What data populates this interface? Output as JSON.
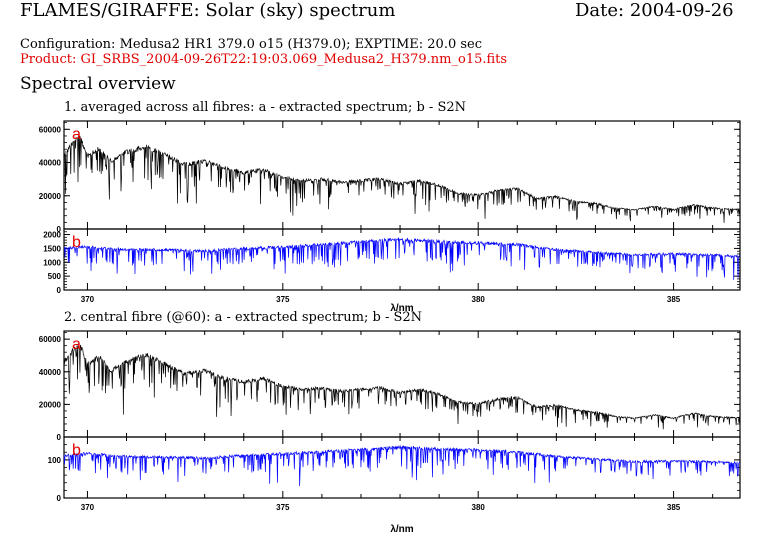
{
  "header": {
    "title": "FLAMES/GIRAFFE: Solar (sky) spectrum",
    "date": "Date: 2004-09-26",
    "configuration": "Configuration: Medusa2 HR1 379.0 o15 (H379.0); EXPTIME: 20.0 sec",
    "product": "Product: GI_SRBS_2004-09-26T22:19:03.069_Medusa2_H379.nm_o15.fits",
    "section": "Spectral overview"
  },
  "colors": {
    "product_text": "#e00000",
    "panel_label": "#e00000",
    "spectrum": "#000000",
    "s2n": "#0000ff"
  },
  "chart_data": [
    {
      "type": "line",
      "title": "1. averaged across all fibres: a - extracted spectrum; b - S2N",
      "xlabel": "λ/nm",
      "xlim": [
        369.4,
        386.7
      ],
      "xticks": [
        370,
        375,
        380,
        385
      ],
      "panels": [
        {
          "label": "a",
          "ylim": [
            0,
            65000
          ],
          "yticks": [
            0,
            20000,
            40000,
            60000
          ],
          "series": [
            {
              "color": "#000000",
              "x": [
                369.4,
                369.6,
                369.8,
                370.0,
                370.3,
                370.6,
                371.0,
                371.5,
                372.0,
                372.5,
                373.0,
                373.5,
                374.0,
                374.5,
                375.0,
                375.5,
                376.0,
                376.5,
                377.0,
                377.5,
                378.0,
                378.5,
                379.0,
                379.5,
                380.0,
                380.5,
                381.0,
                381.5,
                382.0,
                382.5,
                383.0,
                383.5,
                384.0,
                384.5,
                385.0,
                385.5,
                386.0,
                386.7
              ],
              "y": [
                46000,
                53000,
                58000,
                45000,
                50000,
                42000,
                48000,
                51000,
                46000,
                40000,
                42000,
                38000,
                35000,
                37000,
                32000,
                30000,
                31000,
                29000,
                30000,
                31000,
                28000,
                30000,
                27000,
                22000,
                21000,
                24000,
                25000,
                19000,
                20000,
                17000,
                16000,
                13000,
                12000,
                14000,
                12000,
                15000,
                13000,
                12000
              ]
            }
          ]
        },
        {
          "label": "b",
          "ylim": [
            0,
            2200
          ],
          "yticks": [
            0,
            500,
            1000,
            1500,
            2000
          ],
          "series": [
            {
              "color": "#0000ff",
              "x": [
                369.4,
                370.0,
                371.0,
                372.0,
                373.0,
                374.0,
                375.0,
                376.0,
                377.0,
                378.0,
                379.0,
                380.0,
                381.0,
                382.0,
                383.0,
                384.0,
                385.0,
                386.0,
                386.7
              ],
              "y": [
                1550,
                1600,
                1500,
                1500,
                1450,
                1550,
                1600,
                1700,
                1800,
                1900,
                1800,
                1750,
                1700,
                1500,
                1400,
                1300,
                1350,
                1300,
                1250
              ]
            }
          ]
        }
      ]
    },
    {
      "type": "line",
      "title": "2. central fibre (@60): a - extracted spectrum; b - S2N",
      "xlabel": "λ/nm",
      "xlim": [
        369.4,
        386.7
      ],
      "xticks": [
        370,
        375,
        380,
        385
      ],
      "panels": [
        {
          "label": "a",
          "ylim": [
            0,
            65000
          ],
          "yticks": [
            0,
            20000,
            40000,
            60000
          ],
          "series": [
            {
              "color": "#000000",
              "x": [
                369.4,
                369.6,
                369.8,
                370.0,
                370.3,
                370.6,
                371.0,
                371.5,
                372.0,
                372.5,
                373.0,
                373.5,
                374.0,
                374.5,
                375.0,
                375.5,
                376.0,
                376.5,
                377.0,
                377.5,
                378.0,
                378.5,
                379.0,
                379.5,
                380.0,
                380.5,
                381.0,
                381.5,
                382.0,
                382.5,
                383.0,
                383.5,
                384.0,
                384.5,
                385.0,
                385.5,
                386.0,
                386.7
              ],
              "y": [
                47000,
                54000,
                59000,
                46000,
                51000,
                42000,
                48000,
                52000,
                46000,
                40000,
                42000,
                37000,
                35000,
                37000,
                32000,
                30000,
                31000,
                29000,
                30000,
                31000,
                28000,
                30000,
                27000,
                22000,
                21000,
                24000,
                25000,
                19000,
                20000,
                17000,
                16000,
                13000,
                12000,
                14000,
                12000,
                15000,
                13000,
                12000
              ]
            }
          ]
        },
        {
          "label": "b",
          "ylim": [
            0,
            160
          ],
          "yticks": [
            0,
            100
          ],
          "series": [
            {
              "color": "#0000ff",
              "x": [
                369.4,
                370.0,
                371.0,
                372.0,
                373.0,
                374.0,
                375.0,
                376.0,
                377.0,
                378.0,
                379.0,
                380.0,
                381.0,
                382.0,
                383.0,
                384.0,
                385.0,
                386.0,
                386.7
              ],
              "y": [
                115,
                120,
                112,
                110,
                108,
                115,
                120,
                125,
                130,
                138,
                132,
                130,
                125,
                112,
                105,
                98,
                100,
                98,
                95
              ]
            }
          ]
        }
      ]
    }
  ]
}
